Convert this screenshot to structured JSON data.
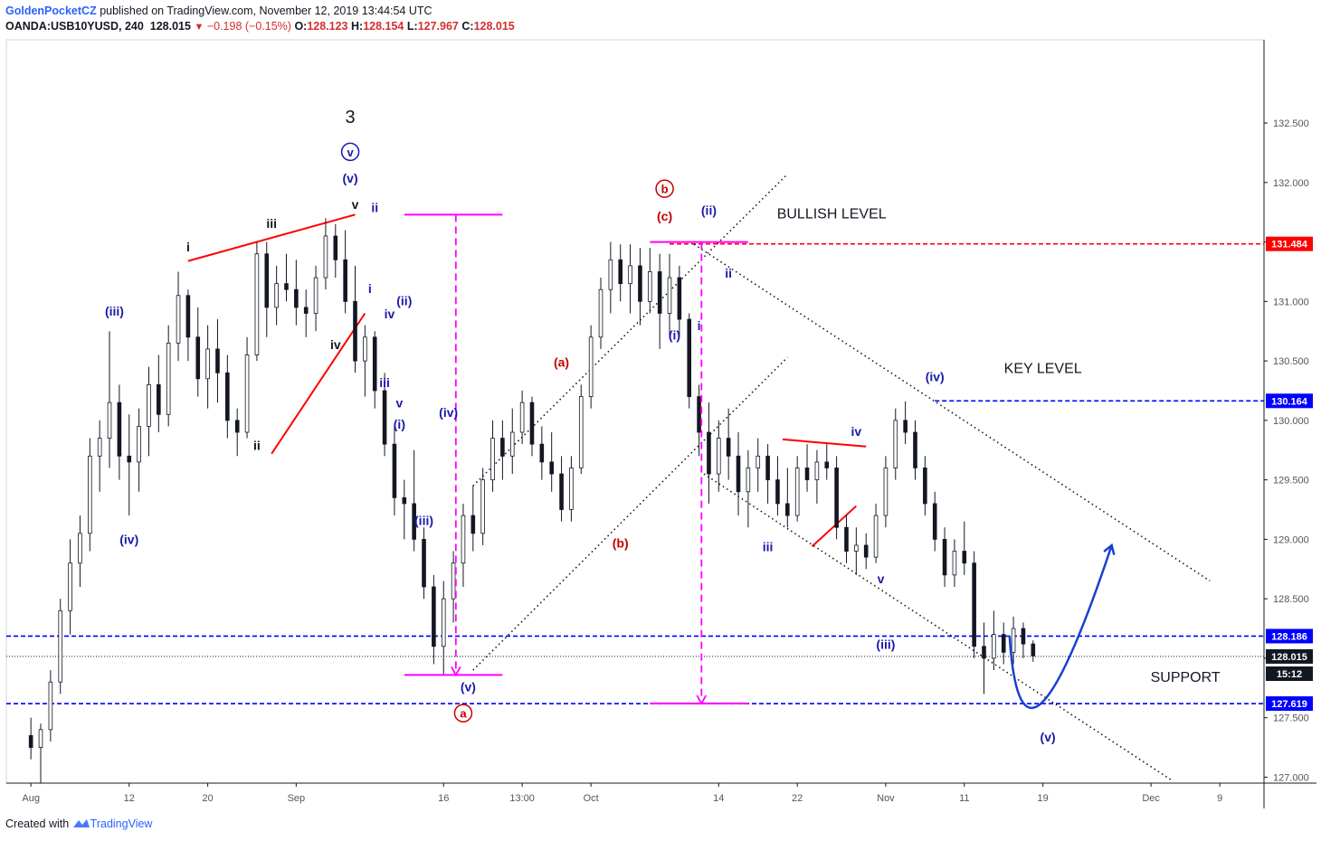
{
  "header": {
    "author": "GoldenPocketCZ",
    "published_text": "published on TradingView.com, November 12, 2019 13:44:54 UTC",
    "symbol": "OANDA:USB10YUSD, 240",
    "last": "128.015",
    "change": "−0.198 (−0.15%)",
    "ohlc": {
      "o_label": "O:",
      "o": "128.123",
      "h_label": "H:",
      "h": "128.154",
      "l_label": "L:",
      "l": "127.967",
      "c_label": "C:",
      "c": "128.015"
    }
  },
  "footer": {
    "created_with": "Created with",
    "brand": "TradingView"
  },
  "colors": {
    "candle": "#131722",
    "wave_blue": "#1a1aa8",
    "wave_red": "#c40000",
    "magenta": "#ff00ff",
    "level_blue": "#0000ff",
    "level_red": "#ff0000",
    "curve": "#1a3fd1"
  },
  "chart_data": {
    "type": "candlestick",
    "instrument": "OANDA:USB10YUSD",
    "timeframe": "240",
    "y_ticks": [
      127.0,
      127.5,
      128.0,
      128.5,
      129.0,
      129.5,
      130.0,
      130.5,
      131.0,
      131.5,
      132.0,
      132.5
    ],
    "y_tick_labels": [
      "127.000",
      "127.500",
      "128.000",
      "128.500",
      "129.000",
      "129.500",
      "130.000",
      "130.500",
      "131.000",
      "131.500",
      "132.000",
      "132.500"
    ],
    "ylim": [
      126.95,
      133.2
    ],
    "x_ticks": [
      "Aug",
      "12",
      "20",
      "Sep",
      "16",
      "13:00",
      "Oct",
      "14",
      "22",
      "Nov",
      "11",
      "19",
      "Dec",
      "9"
    ],
    "x_tick_pos": [
      0,
      10,
      18,
      27,
      42,
      50,
      57,
      70,
      78,
      87,
      95,
      103,
      114,
      121
    ],
    "xlim": [
      -2.5,
      125.5
    ],
    "price_labels": [
      {
        "text": "131.484",
        "value": 131.484,
        "style": "red"
      },
      {
        "text": "130.164",
        "value": 130.164,
        "style": "blue"
      },
      {
        "text": "128.186",
        "value": 128.186,
        "style": "blue"
      },
      {
        "text": "128.015",
        "value": 128.015,
        "style": "black"
      },
      {
        "text": "15:12",
        "value": 127.87,
        "style": "black"
      },
      {
        "text": "127.619",
        "value": 127.619,
        "style": "blue"
      }
    ],
    "levels": [
      {
        "value": 131.484,
        "x_from": 65,
        "style": "red-dashed"
      },
      {
        "value": 130.164,
        "x_from": 92,
        "style": "blue-dashed"
      },
      {
        "value": 128.186,
        "x_from": -2.5,
        "style": "blue-dashed"
      },
      {
        "value": 128.015,
        "x_from": -2.5,
        "style": "black-dotted"
      },
      {
        "value": 127.619,
        "x_from": -2.5,
        "style": "blue-dashed"
      }
    ],
    "annotations": [
      {
        "text": "BULLISH LEVEL",
        "x": 81.5,
        "y": 131.7,
        "style": "plain"
      },
      {
        "text": "KEY LEVEL",
        "x": 103,
        "y": 130.4,
        "style": "plain"
      },
      {
        "text": "SUPPORT",
        "x": 117.5,
        "y": 127.8,
        "style": "plain"
      }
    ],
    "wave_labels": [
      {
        "text": "3",
        "x": 32.5,
        "y": 132.5,
        "style": "black-big"
      },
      {
        "text": "v",
        "x": 32.5,
        "y": 132.22,
        "style": "blue-circle"
      },
      {
        "text": "(v)",
        "x": 32.5,
        "y": 132.0,
        "style": "blue"
      },
      {
        "text": "v",
        "x": 33,
        "y": 131.78,
        "style": "black"
      },
      {
        "text": "iii",
        "x": 24.5,
        "y": 131.62,
        "style": "black"
      },
      {
        "text": "i",
        "x": 16,
        "y": 131.42,
        "style": "black"
      },
      {
        "text": "iv",
        "x": 31,
        "y": 130.6,
        "style": "black"
      },
      {
        "text": "ii",
        "x": 23,
        "y": 129.75,
        "style": "black"
      },
      {
        "text": "ii",
        "x": 35,
        "y": 131.75,
        "style": "blue"
      },
      {
        "text": "i",
        "x": 34.5,
        "y": 131.07,
        "style": "blue"
      },
      {
        "text": "(ii)",
        "x": 38,
        "y": 130.97,
        "style": "blue"
      },
      {
        "text": "iv",
        "x": 36.5,
        "y": 130.86,
        "style": "blue"
      },
      {
        "text": "iii",
        "x": 36,
        "y": 130.28,
        "style": "blue"
      },
      {
        "text": "v",
        "x": 37.5,
        "y": 130.11,
        "style": "blue"
      },
      {
        "text": "(i)",
        "x": 37.5,
        "y": 129.93,
        "style": "blue"
      },
      {
        "text": "(iv)",
        "x": 42.5,
        "y": 130.03,
        "style": "blue"
      },
      {
        "text": "(iii)",
        "x": 40,
        "y": 129.12,
        "style": "blue"
      },
      {
        "text": "(iii)",
        "x": 8.5,
        "y": 130.88,
        "style": "blue"
      },
      {
        "text": "(iv)",
        "x": 10,
        "y": 128.96,
        "style": "blue"
      },
      {
        "text": "(v)",
        "x": 44.5,
        "y": 127.72,
        "style": "blue"
      },
      {
        "text": "a",
        "x": 44,
        "y": 127.5,
        "style": "red-circle"
      },
      {
        "text": "(a)",
        "x": 54,
        "y": 130.45,
        "style": "red"
      },
      {
        "text": "(b)",
        "x": 60,
        "y": 128.93,
        "style": "red"
      },
      {
        "text": "b",
        "x": 64.5,
        "y": 131.91,
        "style": "red-circle"
      },
      {
        "text": "(c)",
        "x": 64.5,
        "y": 131.68,
        "style": "red"
      },
      {
        "text": "(ii)",
        "x": 69,
        "y": 131.73,
        "style": "blue"
      },
      {
        "text": "ii",
        "x": 71,
        "y": 131.2,
        "style": "blue"
      },
      {
        "text": "(i)",
        "x": 65.5,
        "y": 130.68,
        "style": "blue"
      },
      {
        "text": "i",
        "x": 68,
        "y": 130.76,
        "style": "blue"
      },
      {
        "text": "iii",
        "x": 75,
        "y": 128.9,
        "style": "blue"
      },
      {
        "text": "iv",
        "x": 84,
        "y": 129.87,
        "style": "blue"
      },
      {
        "text": "v",
        "x": 86.5,
        "y": 128.63,
        "style": "blue"
      },
      {
        "text": "(iv)",
        "x": 92,
        "y": 130.33,
        "style": "blue"
      },
      {
        "text": "(iii)",
        "x": 87,
        "y": 128.08,
        "style": "blue"
      },
      {
        "text": "(v)",
        "x": 103.5,
        "y": 127.3,
        "style": "blue"
      }
    ],
    "trendlines": [
      {
        "x1": 45,
        "y1": 129.45,
        "x2": 77,
        "y2": 132.07,
        "style": "black-dotted"
      },
      {
        "x1": 45,
        "y1": 127.9,
        "x2": 77,
        "y2": 130.53,
        "style": "black-dotted"
      },
      {
        "x1": 67.5,
        "y1": 131.48,
        "x2": 120,
        "y2": 128.65,
        "style": "black-dotted"
      },
      {
        "x1": 68.5,
        "y1": 129.55,
        "x2": 116,
        "y2": 126.98,
        "style": "black-dotted"
      },
      {
        "x1": 16,
        "y1": 131.34,
        "x2": 33,
        "y2": 131.73,
        "style": "red"
      },
      {
        "x1": 24.5,
        "y1": 129.72,
        "x2": 34,
        "y2": 130.9,
        "style": "red"
      },
      {
        "x1": 76.5,
        "y1": 129.84,
        "x2": 85,
        "y2": 129.78,
        "style": "red"
      },
      {
        "x1": 79.5,
        "y1": 128.94,
        "x2": 84,
        "y2": 129.28,
        "style": "red"
      }
    ],
    "projections": [
      {
        "x": 43.25,
        "y_top": 131.73,
        "y_bottom": 127.86,
        "x_from": 38,
        "x_to": 48
      },
      {
        "x": 68.25,
        "y_top": 131.5,
        "y_bottom": 127.62,
        "x_from": 63,
        "x_to": 73
      }
    ],
    "forecast_curve": [
      [
        99.6,
        128.19
      ],
      [
        102.8,
        127.62
      ],
      [
        110,
        128.95
      ]
    ],
    "candles": [
      {
        "o": 127.35,
        "h": 127.5,
        "l": 127.15,
        "c": 127.25
      },
      {
        "o": 127.25,
        "h": 127.45,
        "l": 126.95,
        "c": 127.4
      },
      {
        "o": 127.4,
        "h": 127.9,
        "l": 127.3,
        "c": 127.8
      },
      {
        "o": 127.8,
        "h": 128.5,
        "l": 127.7,
        "c": 128.4
      },
      {
        "o": 128.4,
        "h": 129.0,
        "l": 128.2,
        "c": 128.8
      },
      {
        "o": 128.8,
        "h": 129.2,
        "l": 128.6,
        "c": 129.05
      },
      {
        "o": 129.05,
        "h": 129.85,
        "l": 128.9,
        "c": 129.7
      },
      {
        "o": 129.7,
        "h": 130.0,
        "l": 129.4,
        "c": 129.85
      },
      {
        "o": 129.85,
        "h": 130.75,
        "l": 129.6,
        "c": 130.15
      },
      {
        "o": 130.15,
        "h": 130.3,
        "l": 129.5,
        "c": 129.7
      },
      {
        "o": 129.7,
        "h": 130.05,
        "l": 129.2,
        "c": 129.65
      },
      {
        "o": 129.65,
        "h": 130.1,
        "l": 129.4,
        "c": 129.95
      },
      {
        "o": 129.95,
        "h": 130.45,
        "l": 129.7,
        "c": 130.3
      },
      {
        "o": 130.3,
        "h": 130.55,
        "l": 129.9,
        "c": 130.05
      },
      {
        "o": 130.05,
        "h": 130.8,
        "l": 129.95,
        "c": 130.65
      },
      {
        "o": 130.65,
        "h": 131.25,
        "l": 130.5,
        "c": 131.05
      },
      {
        "o": 131.05,
        "h": 131.1,
        "l": 130.5,
        "c": 130.7
      },
      {
        "o": 130.7,
        "h": 130.95,
        "l": 130.2,
        "c": 130.35
      },
      {
        "o": 130.35,
        "h": 130.8,
        "l": 130.1,
        "c": 130.6
      },
      {
        "o": 130.6,
        "h": 130.85,
        "l": 130.15,
        "c": 130.4
      },
      {
        "o": 130.4,
        "h": 130.55,
        "l": 129.85,
        "c": 130.0
      },
      {
        "o": 130.0,
        "h": 130.1,
        "l": 129.7,
        "c": 129.9
      },
      {
        "o": 129.9,
        "h": 130.7,
        "l": 129.85,
        "c": 130.55
      },
      {
        "o": 130.55,
        "h": 131.5,
        "l": 130.5,
        "c": 131.4
      },
      {
        "o": 131.4,
        "h": 131.5,
        "l": 130.7,
        "c": 130.95
      },
      {
        "o": 130.95,
        "h": 131.3,
        "l": 130.8,
        "c": 131.15
      },
      {
        "o": 131.15,
        "h": 131.4,
        "l": 131.0,
        "c": 131.1
      },
      {
        "o": 131.1,
        "h": 131.35,
        "l": 130.8,
        "c": 130.95
      },
      {
        "o": 130.95,
        "h": 131.1,
        "l": 130.7,
        "c": 130.9
      },
      {
        "o": 130.9,
        "h": 131.3,
        "l": 130.75,
        "c": 131.2
      },
      {
        "o": 131.2,
        "h": 131.7,
        "l": 131.1,
        "c": 131.55
      },
      {
        "o": 131.55,
        "h": 131.65,
        "l": 131.2,
        "c": 131.35
      },
      {
        "o": 131.35,
        "h": 131.6,
        "l": 130.9,
        "c": 131.0
      },
      {
        "o": 131.0,
        "h": 131.3,
        "l": 130.4,
        "c": 130.5
      },
      {
        "o": 130.5,
        "h": 130.8,
        "l": 130.2,
        "c": 130.7
      },
      {
        "o": 130.7,
        "h": 130.75,
        "l": 130.1,
        "c": 130.25
      },
      {
        "o": 130.25,
        "h": 130.4,
        "l": 129.7,
        "c": 129.8
      },
      {
        "o": 129.8,
        "h": 129.95,
        "l": 129.2,
        "c": 129.35
      },
      {
        "o": 129.35,
        "h": 129.5,
        "l": 129.0,
        "c": 129.3
      },
      {
        "o": 129.3,
        "h": 129.75,
        "l": 128.9,
        "c": 129.0
      },
      {
        "o": 129.0,
        "h": 129.1,
        "l": 128.5,
        "c": 128.6
      },
      {
        "o": 128.6,
        "h": 128.7,
        "l": 127.95,
        "c": 128.1
      },
      {
        "o": 128.1,
        "h": 128.65,
        "l": 127.86,
        "c": 128.5
      },
      {
        "o": 128.5,
        "h": 128.9,
        "l": 128.3,
        "c": 128.8
      },
      {
        "o": 128.8,
        "h": 129.3,
        "l": 128.6,
        "c": 129.2
      },
      {
        "o": 129.2,
        "h": 129.45,
        "l": 128.9,
        "c": 129.05
      },
      {
        "o": 129.05,
        "h": 129.6,
        "l": 128.95,
        "c": 129.5
      },
      {
        "o": 129.5,
        "h": 130.0,
        "l": 129.4,
        "c": 129.85
      },
      {
        "o": 129.85,
        "h": 130.0,
        "l": 129.5,
        "c": 129.7
      },
      {
        "o": 129.7,
        "h": 130.1,
        "l": 129.55,
        "c": 129.9
      },
      {
        "o": 129.9,
        "h": 130.25,
        "l": 129.8,
        "c": 130.15
      },
      {
        "o": 130.15,
        "h": 130.2,
        "l": 129.7,
        "c": 129.8
      },
      {
        "o": 129.8,
        "h": 129.95,
        "l": 129.5,
        "c": 129.65
      },
      {
        "o": 129.65,
        "h": 129.9,
        "l": 129.4,
        "c": 129.55
      },
      {
        "o": 129.55,
        "h": 129.7,
        "l": 129.15,
        "c": 129.25
      },
      {
        "o": 129.25,
        "h": 129.7,
        "l": 129.15,
        "c": 129.6
      },
      {
        "o": 129.6,
        "h": 130.3,
        "l": 129.55,
        "c": 130.2
      },
      {
        "o": 130.2,
        "h": 130.8,
        "l": 130.1,
        "c": 130.7
      },
      {
        "o": 130.7,
        "h": 131.2,
        "l": 130.6,
        "c": 131.1
      },
      {
        "o": 131.1,
        "h": 131.5,
        "l": 130.9,
        "c": 131.35
      },
      {
        "o": 131.35,
        "h": 131.48,
        "l": 131.0,
        "c": 131.15
      },
      {
        "o": 131.15,
        "h": 131.48,
        "l": 130.9,
        "c": 131.3
      },
      {
        "o": 131.3,
        "h": 131.45,
        "l": 130.8,
        "c": 131.0
      },
      {
        "o": 131.0,
        "h": 131.45,
        "l": 130.9,
        "c": 131.25
      },
      {
        "o": 131.25,
        "h": 131.4,
        "l": 130.6,
        "c": 130.9
      },
      {
        "o": 130.9,
        "h": 131.4,
        "l": 130.7,
        "c": 131.2
      },
      {
        "o": 131.2,
        "h": 131.3,
        "l": 130.7,
        "c": 130.85
      },
      {
        "o": 130.85,
        "h": 130.9,
        "l": 130.1,
        "c": 130.2
      },
      {
        "o": 130.2,
        "h": 130.3,
        "l": 129.7,
        "c": 129.9
      },
      {
        "o": 129.9,
        "h": 130.15,
        "l": 129.3,
        "c": 129.55
      },
      {
        "o": 129.55,
        "h": 130.0,
        "l": 129.4,
        "c": 129.85
      },
      {
        "o": 129.85,
        "h": 130.1,
        "l": 129.5,
        "c": 129.7
      },
      {
        "o": 129.7,
        "h": 129.9,
        "l": 129.2,
        "c": 129.4
      },
      {
        "o": 129.4,
        "h": 129.75,
        "l": 129.1,
        "c": 129.6
      },
      {
        "o": 129.6,
        "h": 129.85,
        "l": 129.4,
        "c": 129.7
      },
      {
        "o": 129.7,
        "h": 129.8,
        "l": 129.3,
        "c": 129.5
      },
      {
        "o": 129.5,
        "h": 129.7,
        "l": 129.2,
        "c": 129.3
      },
      {
        "o": 129.3,
        "h": 129.6,
        "l": 129.1,
        "c": 129.2
      },
      {
        "o": 129.2,
        "h": 129.7,
        "l": 129.15,
        "c": 129.6
      },
      {
        "o": 129.6,
        "h": 129.8,
        "l": 129.4,
        "c": 129.5
      },
      {
        "o": 129.5,
        "h": 129.75,
        "l": 129.3,
        "c": 129.65
      },
      {
        "o": 129.65,
        "h": 129.8,
        "l": 129.5,
        "c": 129.6
      },
      {
        "o": 129.6,
        "h": 129.7,
        "l": 129.0,
        "c": 129.1
      },
      {
        "o": 129.1,
        "h": 129.2,
        "l": 128.8,
        "c": 128.9
      },
      {
        "o": 128.9,
        "h": 129.1,
        "l": 128.7,
        "c": 128.95
      },
      {
        "o": 128.95,
        "h": 129.05,
        "l": 128.75,
        "c": 128.85
      },
      {
        "o": 128.85,
        "h": 129.3,
        "l": 128.8,
        "c": 129.2
      },
      {
        "o": 129.2,
        "h": 129.7,
        "l": 129.1,
        "c": 129.6
      },
      {
        "o": 129.6,
        "h": 130.1,
        "l": 129.5,
        "c": 130.0
      },
      {
        "o": 130.0,
        "h": 130.16,
        "l": 129.8,
        "c": 129.9
      },
      {
        "o": 129.9,
        "h": 130.0,
        "l": 129.5,
        "c": 129.6
      },
      {
        "o": 129.6,
        "h": 129.7,
        "l": 129.2,
        "c": 129.3
      },
      {
        "o": 129.3,
        "h": 129.4,
        "l": 128.9,
        "c": 129.0
      },
      {
        "o": 129.0,
        "h": 129.1,
        "l": 128.6,
        "c": 128.7
      },
      {
        "o": 128.7,
        "h": 129.0,
        "l": 128.6,
        "c": 128.9
      },
      {
        "o": 128.9,
        "h": 129.15,
        "l": 128.7,
        "c": 128.8
      },
      {
        "o": 128.8,
        "h": 128.9,
        "l": 128.0,
        "c": 128.1
      },
      {
        "o": 128.1,
        "h": 128.3,
        "l": 127.7,
        "c": 128.0
      },
      {
        "o": 128.0,
        "h": 128.4,
        "l": 127.9,
        "c": 128.2
      },
      {
        "o": 128.2,
        "h": 128.3,
        "l": 127.95,
        "c": 128.05
      },
      {
        "o": 128.05,
        "h": 128.35,
        "l": 127.95,
        "c": 128.25
      },
      {
        "o": 128.25,
        "h": 128.3,
        "l": 128.0,
        "c": 128.12
      },
      {
        "o": 128.12,
        "h": 128.15,
        "l": 127.97,
        "c": 128.02
      }
    ]
  }
}
